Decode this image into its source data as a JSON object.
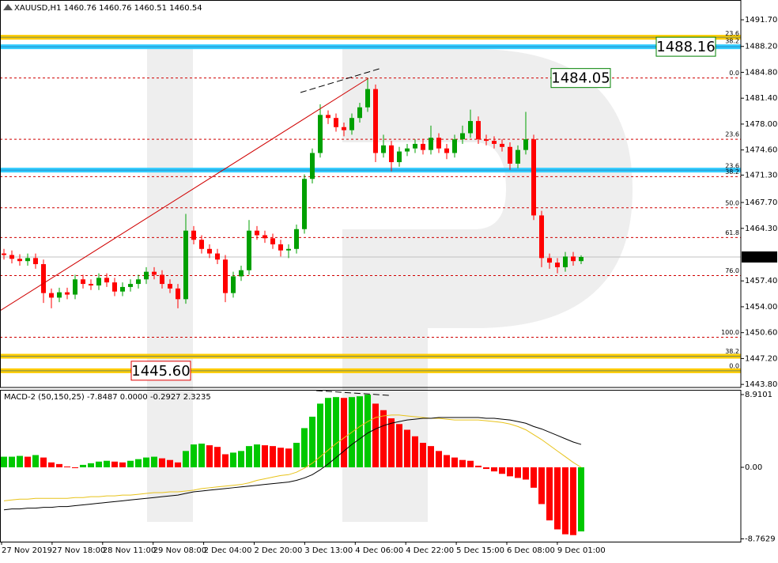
{
  "chart_data": [
    {
      "type": "candlestick",
      "title": "XAUUSD,H1  1460.76 1460.76 1460.51 1460.54",
      "up_color": "#00a000",
      "down_color": "#ff0000",
      "open": [
        1461.0,
        1460.8,
        1460.3,
        1460.0,
        1460.4,
        1459.6,
        1455.8,
        1455.2,
        1455.9,
        1455.6,
        1457.6,
        1457.0,
        1456.8,
        1457.8,
        1457.2,
        1456.0,
        1456.6,
        1457.0,
        1457.6,
        1458.6,
        1458.2,
        1457.0,
        1456.4,
        1455.0,
        1464.0,
        1462.8,
        1461.6,
        1461.0,
        1460.2,
        1455.8,
        1458.0,
        1458.8,
        1464.0,
        1463.4,
        1463.0,
        1462.2,
        1461.4,
        1461.6,
        1464.2,
        1470.8,
        1474.2,
        1479.2,
        1478.8,
        1477.6,
        1477.2,
        1478.8,
        1480.2,
        1482.6,
        1474.2,
        1475.2,
        1473.0,
        1474.4,
        1474.8,
        1475.4,
        1474.6,
        1476.2,
        1474.8,
        1474.2,
        1476.0,
        1476.8,
        1478.4,
        1476.0,
        1475.8,
        1475.4,
        1475.0,
        1472.8,
        1474.6,
        1476.0,
        1466.0,
        1460.4,
        1459.8,
        1459.2,
        1460.6,
        1460.0
      ],
      "high": [
        1461.6,
        1461.4,
        1460.9,
        1461.0,
        1461.0,
        1460.2,
        1456.4,
        1456.5,
        1456.5,
        1458.2,
        1458.2,
        1457.6,
        1458.4,
        1458.4,
        1457.8,
        1457.2,
        1457.6,
        1458.2,
        1459.2,
        1459.2,
        1458.8,
        1457.6,
        1457.0,
        1466.2,
        1464.6,
        1463.4,
        1462.2,
        1461.6,
        1460.8,
        1458.6,
        1459.4,
        1465.4,
        1464.6,
        1464.0,
        1463.6,
        1462.8,
        1462.2,
        1464.8,
        1471.4,
        1474.8,
        1480.6,
        1479.8,
        1479.4,
        1478.2,
        1479.4,
        1480.8,
        1484.05,
        1483.2,
        1476.6,
        1475.8,
        1475.0,
        1475.4,
        1476.0,
        1476.0,
        1477.8,
        1476.8,
        1475.4,
        1476.6,
        1477.8,
        1479.9,
        1479.0,
        1476.6,
        1476.4,
        1476.0,
        1475.6,
        1475.2,
        1479.6,
        1476.6,
        1466.6,
        1461.0,
        1460.4,
        1461.2,
        1461.2,
        1460.76
      ],
      "low": [
        1460.2,
        1459.7,
        1459.4,
        1459.4,
        1459.0,
        1454.5,
        1453.8,
        1454.6,
        1455.0,
        1455.0,
        1456.4,
        1456.2,
        1456.2,
        1456.6,
        1455.4,
        1455.4,
        1456.0,
        1456.4,
        1457.0,
        1457.6,
        1456.4,
        1455.8,
        1453.8,
        1454.4,
        1462.2,
        1461.0,
        1460.4,
        1459.6,
        1454.6,
        1455.2,
        1457.4,
        1458.2,
        1462.8,
        1462.4,
        1461.6,
        1460.6,
        1460.4,
        1461.0,
        1463.6,
        1470.2,
        1473.6,
        1478.0,
        1477.0,
        1476.4,
        1476.6,
        1478.2,
        1479.6,
        1473.0,
        1473.6,
        1471.8,
        1472.4,
        1473.8,
        1474.2,
        1474.0,
        1474.0,
        1474.2,
        1473.4,
        1473.6,
        1475.4,
        1476.2,
        1475.4,
        1475.2,
        1474.8,
        1474.4,
        1472.0,
        1472.2,
        1474.0,
        1465.4,
        1459.2,
        1459.0,
        1458.4,
        1458.6,
        1459.4,
        1459.6
      ],
      "close": [
        1460.8,
        1460.3,
        1460.0,
        1460.4,
        1459.6,
        1455.8,
        1455.2,
        1455.9,
        1455.6,
        1457.6,
        1457.0,
        1456.8,
        1457.8,
        1457.2,
        1456.0,
        1456.6,
        1457.0,
        1457.6,
        1458.6,
        1458.2,
        1457.0,
        1456.4,
        1455.0,
        1464.0,
        1462.8,
        1461.6,
        1461.0,
        1460.2,
        1455.8,
        1458.0,
        1458.8,
        1464.0,
        1463.4,
        1463.0,
        1462.2,
        1461.4,
        1461.6,
        1464.2,
        1470.8,
        1474.2,
        1479.2,
        1478.8,
        1477.6,
        1477.2,
        1478.8,
        1480.2,
        1482.6,
        1474.2,
        1475.2,
        1473.0,
        1474.4,
        1474.8,
        1475.4,
        1474.6,
        1476.2,
        1474.8,
        1474.2,
        1476.0,
        1476.8,
        1478.4,
        1476.0,
        1475.8,
        1475.4,
        1475.0,
        1472.8,
        1474.6,
        1476.0,
        1466.0,
        1460.4,
        1459.8,
        1459.2,
        1460.6,
        1460.0,
        1460.54
      ],
      "ylim": [
        1443.4,
        1494.3
      ],
      "yticks": [
        {
          "value": 1491.7,
          "label": "1491.70"
        },
        {
          "value": 1488.2,
          "label": "1488.20"
        },
        {
          "value": 1484.8,
          "label": "1484.80"
        },
        {
          "value": 1481.4,
          "label": "1481.40"
        },
        {
          "value": 1478.0,
          "label": "1478.00"
        },
        {
          "value": 1474.6,
          "label": "1474.60"
        },
        {
          "value": 1471.3,
          "label": "1471.30"
        },
        {
          "value": 1467.7,
          "label": "1467.70"
        },
        {
          "value": 1464.3,
          "label": "1464.30"
        },
        {
          "value": 1457.4,
          "label": "1457.40"
        },
        {
          "value": 1454.0,
          "label": "1454.00"
        },
        {
          "value": 1450.6,
          "label": "1450.60"
        },
        {
          "value": 1447.2,
          "label": "1447.20"
        },
        {
          "value": 1443.8,
          "label": "1443.80"
        }
      ],
      "current_price": 1460.54,
      "fibo_color": "#d00000",
      "fibo_levels": [
        {
          "label": "0.0",
          "price": 1484.05
        },
        {
          "label": "23.6",
          "price": 1476.0
        },
        {
          "label": "38.2",
          "price": 1471.1
        },
        {
          "label": "50.0",
          "price": 1467.0
        },
        {
          "label": "61.8",
          "price": 1463.1
        },
        {
          "label": "76.0",
          "price": 1458.1
        },
        {
          "label": "100.0",
          "price": 1450.0
        }
      ],
      "bands": [
        {
          "price": 1489.4,
          "color": "#ffcc00"
        },
        {
          "price": 1488.16,
          "color": "#33ccff"
        },
        {
          "price": 1471.95,
          "color": "#33ccff"
        },
        {
          "price": 1447.5,
          "color": "#ffcc00"
        },
        {
          "price": 1445.6,
          "color": "#ffcc00"
        }
      ],
      "band_labels": [
        {
          "label": "23.6",
          "price": 1489.9
        },
        {
          "label": "38.2",
          "price": 1488.9
        },
        {
          "label": "23.6",
          "price": 1472.5
        },
        {
          "label": "38.2",
          "price": 1448.15
        },
        {
          "label": "0.0",
          "price": 1446.2
        }
      ],
      "price_boxes": [
        {
          "price": 1488.16,
          "color": "#008000"
        },
        {
          "price": 1484.05,
          "color": "#008000"
        },
        {
          "price": {
            "value": 1445.6,
            "label": "1445.60"
          },
          "color": "#e00000"
        }
      ]
    },
    {
      "type": "macd",
      "title": "MACD-2 (50,150,25) -7.8487 0.0000 -0.2927 2.3235",
      "up_color": "#00c800",
      "down_color": "#ff0000",
      "values": [
        1.3,
        1.3,
        1.4,
        1.3,
        1.5,
        1.2,
        0.6,
        0.4,
        0.1,
        -0.1,
        0.3,
        0.5,
        0.7,
        0.8,
        0.7,
        0.6,
        0.8,
        1.0,
        1.2,
        1.3,
        1.1,
        0.9,
        0.6,
        2.0,
        2.8,
        2.9,
        2.7,
        2.5,
        1.6,
        1.8,
        2.0,
        2.6,
        2.8,
        2.7,
        2.6,
        2.4,
        2.3,
        3.0,
        4.8,
        6.2,
        7.8,
        8.5,
        8.6,
        8.5,
        8.6,
        8.7,
        8.9,
        7.8,
        7.0,
        6.0,
        5.3,
        4.6,
        3.8,
        3.0,
        2.6,
        2.0,
        1.5,
        1.2,
        0.9,
        0.8,
        0.2,
        -0.2,
        -0.5,
        -0.8,
        -1.1,
        -1.3,
        -1.5,
        -2.5,
        -4.5,
        -6.5,
        -7.6,
        -8.2,
        -8.3,
        -7.8487
      ],
      "series": [
        {
          "color": "#e8c31a",
          "values": [
            -4.1,
            -4.0,
            -3.9,
            -3.9,
            -3.8,
            -3.8,
            -3.8,
            -3.8,
            -3.8,
            -3.7,
            -3.7,
            -3.6,
            -3.6,
            -3.5,
            -3.5,
            -3.4,
            -3.4,
            -3.3,
            -3.2,
            -3.1,
            -3.1,
            -3.0,
            -3.0,
            -2.9,
            -2.8,
            -2.6,
            -2.5,
            -2.4,
            -2.3,
            -2.2,
            -2.1,
            -1.9,
            -1.6,
            -1.4,
            -1.2,
            -1.0,
            -0.9,
            -0.6,
            -0.1,
            0.5,
            1.3,
            2.1,
            2.9,
            3.6,
            4.3,
            5.0,
            5.6,
            6.1,
            6.3,
            6.4,
            6.4,
            6.3,
            6.2,
            6.1,
            6.0,
            6.0,
            5.9,
            5.8,
            5.8,
            5.8,
            5.8,
            5.7,
            5.6,
            5.5,
            5.3,
            5.0,
            4.6,
            4.0,
            3.4,
            2.7,
            2.0,
            1.3,
            0.6,
            0.0
          ]
        },
        {
          "color": "#000000",
          "values": [
            -5.2,
            -5.1,
            -5.1,
            -5.0,
            -5.0,
            -4.9,
            -4.9,
            -4.8,
            -4.8,
            -4.7,
            -4.6,
            -4.5,
            -4.4,
            -4.3,
            -4.2,
            -4.1,
            -4.0,
            -3.9,
            -3.8,
            -3.7,
            -3.6,
            -3.5,
            -3.4,
            -3.2,
            -3.0,
            -2.9,
            -2.8,
            -2.7,
            -2.6,
            -2.5,
            -2.4,
            -2.3,
            -2.2,
            -2.1,
            -2.0,
            -1.9,
            -1.8,
            -1.6,
            -1.3,
            -0.9,
            -0.3,
            0.4,
            1.2,
            2.0,
            2.8,
            3.5,
            4.2,
            4.7,
            5.1,
            5.4,
            5.6,
            5.8,
            5.9,
            6.0,
            6.0,
            6.1,
            6.1,
            6.1,
            6.1,
            6.1,
            6.1,
            6.0,
            6.0,
            5.9,
            5.8,
            5.6,
            5.4,
            5.0,
            4.7,
            4.3,
            3.9,
            3.5,
            3.1,
            2.8
          ]
        }
      ],
      "ylim": [
        -9.2,
        9.49
      ],
      "yticks": [
        8.9101,
        {
          "value": 0,
          "label": "0.00"
        },
        -8.7629
      ],
      "time_labels": [
        "27 Nov 2019",
        "27 Nov 18:00",
        "28 Nov 11:00",
        "29 Nov 08:00",
        "2 Dec 04:00",
        "2 Dec 20:00",
        "3 Dec 13:00",
        "4 Dec 06:00",
        "4 Dec 22:00",
        "5 Dec 15:00",
        "6 Dec 08:00",
        "9 Dec 01:00"
      ]
    }
  ]
}
